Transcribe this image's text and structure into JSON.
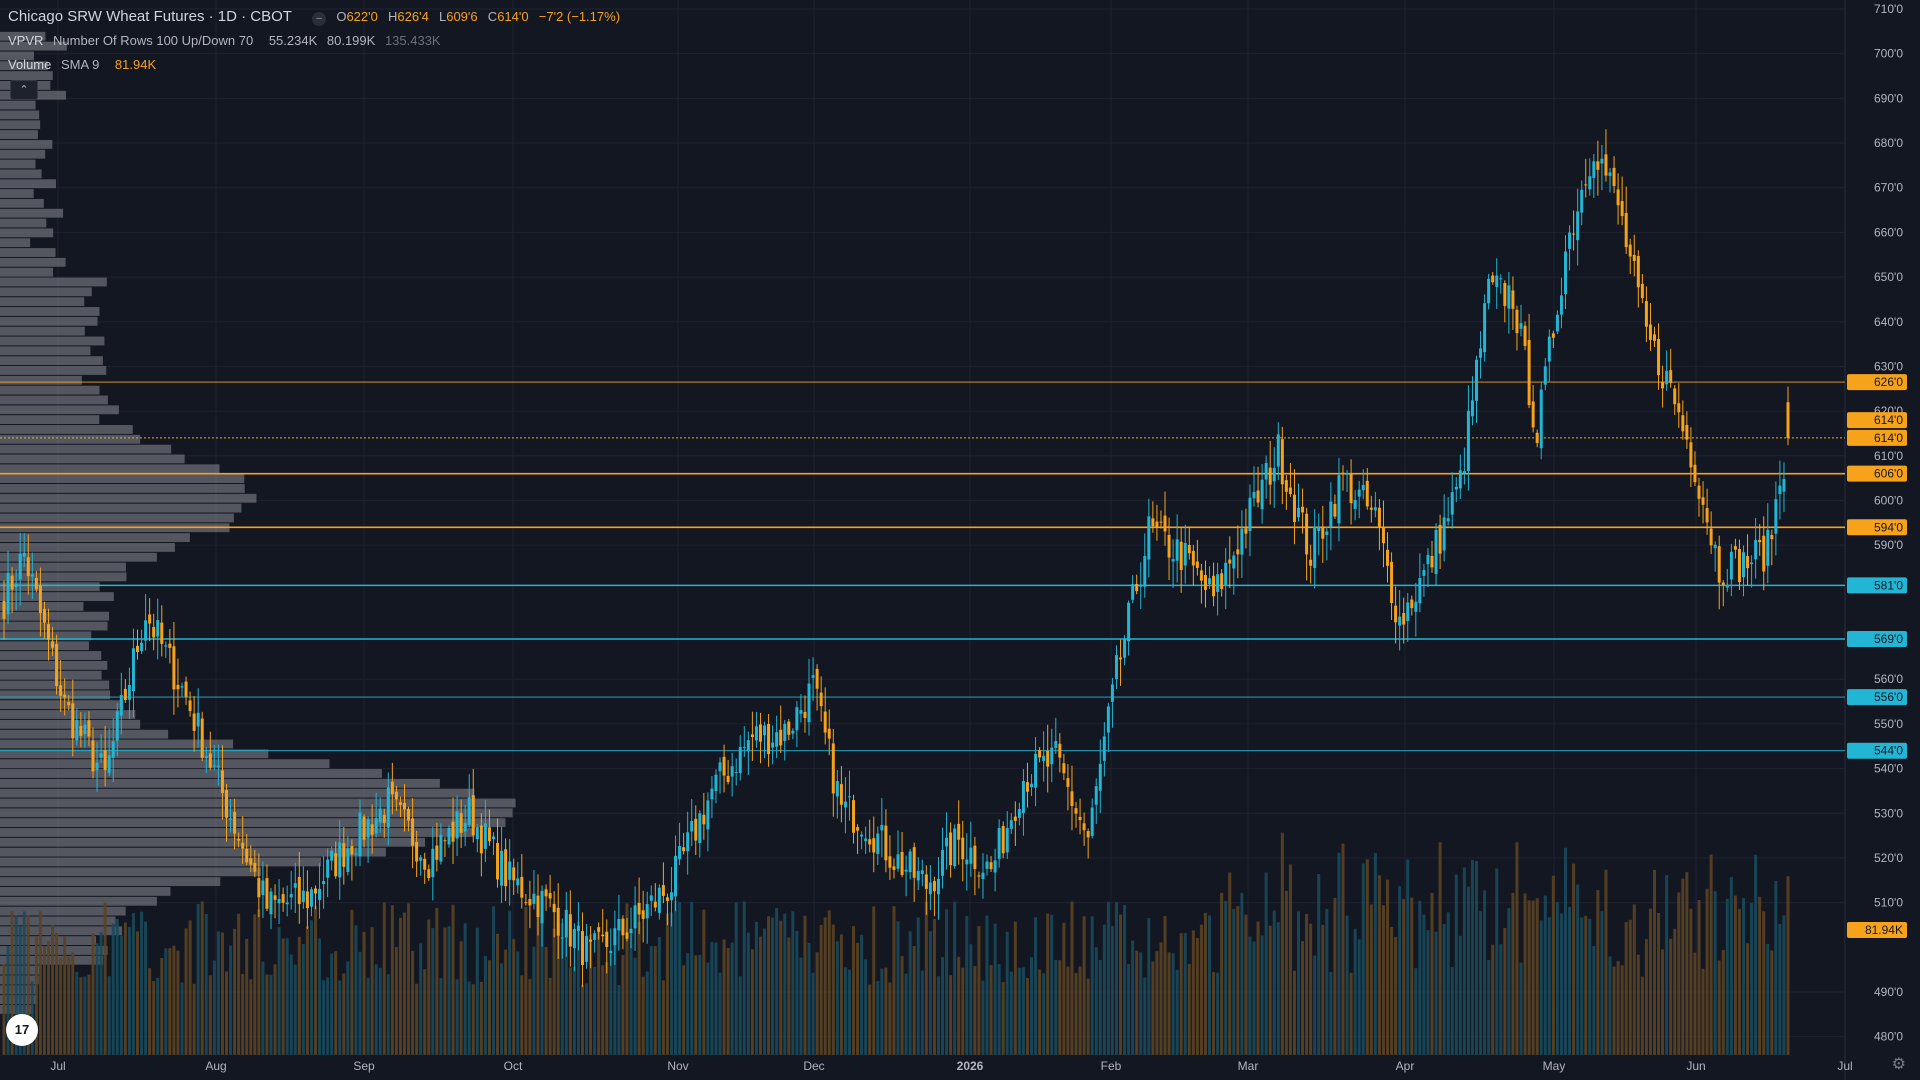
{
  "header": {
    "symbol_title": "Chicago SRW Wheat Futures · 1D · CBOT",
    "ohlc": {
      "o_label": "O",
      "o_value": "622'0",
      "h_label": "H",
      "h_value": "626'4",
      "l_label": "L",
      "l_value": "609'6",
      "c_label": "C",
      "c_value": "614'0",
      "change": "−7'2 (−1.17%)"
    }
  },
  "indicators": {
    "vpvr": {
      "name": "VPVR",
      "params": "Number Of Rows 100 Up/Down 70",
      "v1": "55.234K",
      "v2": "80.199K",
      "v3": "135.433K"
    },
    "volume": {
      "name": "Volume",
      "params": "SMA 9",
      "value": "81.94K"
    }
  },
  "controls": {
    "collapse_glyph": "⌃",
    "logo_text": "17",
    "settings_icon": "gear-icon"
  },
  "colors": {
    "background": "#131722",
    "up": "#22b5d4",
    "down": "#f7a21b",
    "volume_up": "#1a4a5c",
    "volume_down": "#5c4322",
    "profile": "#8a8d94",
    "grid": "#1f2330",
    "text": "#d1d4dc"
  },
  "chart_data": {
    "type": "candlestick",
    "ylim": [
      4750,
      7100
    ],
    "price_ticks": [
      "710'0",
      "700'0",
      "690'0",
      "680'0",
      "670'0",
      "660'0",
      "650'0",
      "640'0",
      "630'0",
      "620'0",
      "610'0",
      "600'0",
      "590'0",
      "560'0",
      "550'0",
      "540'0",
      "530'0",
      "520'0",
      "510'0",
      "490'0",
      "480'0"
    ],
    "x_labels": [
      "Jul",
      "Aug",
      "Sep",
      "Oct",
      "Nov",
      "Dec",
      "2026",
      "Feb",
      "Mar",
      "Apr",
      "May",
      "Jun",
      "Jul"
    ],
    "levels": [
      {
        "price": 6265,
        "label": "626'0",
        "style": "orange-thin"
      },
      {
        "price": 6140,
        "label": "614'0",
        "style": "orange-dotted"
      },
      {
        "price": 6060,
        "label": "606'0",
        "style": "orange"
      },
      {
        "price": 5940,
        "label": "594'0",
        "style": "orange"
      },
      {
        "price": 5810,
        "label": "581'0",
        "style": "cyan"
      },
      {
        "price": 5690,
        "label": "569'0",
        "style": "cyan"
      },
      {
        "price": 5560,
        "label": "556'0",
        "style": "cyan-thin"
      },
      {
        "price": 5440,
        "label": "544'0",
        "style": "cyan-thin"
      }
    ],
    "extra_price_badge": {
      "price": 6180,
      "label": "614'0"
    },
    "volume_badge": "81.94K",
    "close_anchors": [
      [
        0,
        5780
      ],
      [
        5,
        5880
      ],
      [
        15,
        5540
      ],
      [
        25,
        5380
      ],
      [
        35,
        5750
      ],
      [
        45,
        5560
      ],
      [
        55,
        5320
      ],
      [
        65,
        5090
      ],
      [
        75,
        5110
      ],
      [
        85,
        5230
      ],
      [
        95,
        5320
      ],
      [
        105,
        5200
      ],
      [
        115,
        5300
      ],
      [
        125,
        5150
      ],
      [
        135,
        5090
      ],
      [
        145,
        4980
      ],
      [
        155,
        5050
      ],
      [
        165,
        5140
      ],
      [
        175,
        5350
      ],
      [
        185,
        5470
      ],
      [
        193,
        5480
      ],
      [
        200,
        5580
      ],
      [
        207,
        5310
      ],
      [
        212,
        5290
      ],
      [
        220,
        5200
      ],
      [
        228,
        5140
      ],
      [
        236,
        5240
      ],
      [
        244,
        5170
      ],
      [
        252,
        5380
      ],
      [
        260,
        5420
      ],
      [
        268,
        5240
      ],
      [
        275,
        5610
      ],
      [
        283,
        5930
      ],
      [
        291,
        5880
      ],
      [
        299,
        5780
      ],
      [
        307,
        5950
      ],
      [
        315,
        6110
      ],
      [
        323,
        5880
      ],
      [
        331,
        6050
      ],
      [
        339,
        5960
      ],
      [
        345,
        5730
      ],
      [
        352,
        5850
      ],
      [
        360,
        6040
      ],
      [
        367,
        6470
      ],
      [
        373,
        6460
      ],
      [
        379,
        6150
      ],
      [
        386,
        6560
      ],
      [
        393,
        6800
      ],
      [
        399,
        6660
      ],
      [
        406,
        6370
      ],
      [
        412,
        6250
      ],
      [
        418,
        6080
      ],
      [
        424,
        5850
      ],
      [
        430,
        5860
      ],
      [
        436,
        5890
      ],
      [
        441,
        6140
      ]
    ],
    "profile_rows": 100,
    "profile_peak_price": 5300
  }
}
